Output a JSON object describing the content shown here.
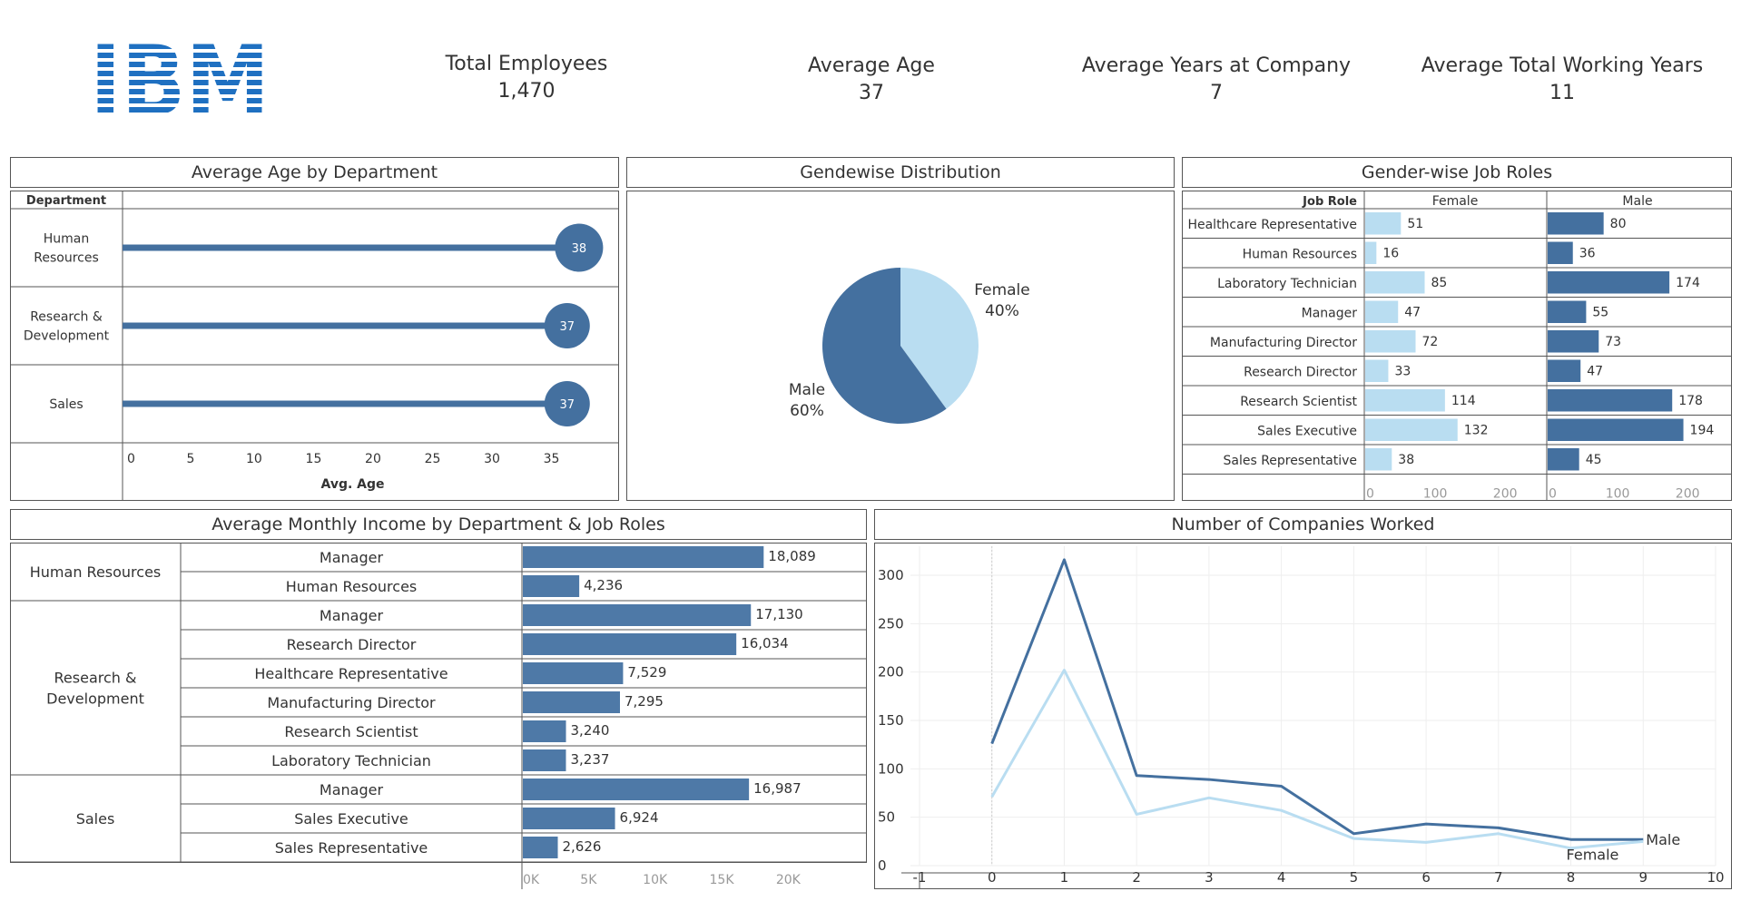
{
  "logo": {
    "text": "IBM",
    "color": "#1f70c1"
  },
  "kpis": [
    {
      "label": "Total Employees",
      "value": "1,470"
    },
    {
      "label": "Average Age",
      "value": "37"
    },
    {
      "label": "Average Years at Company",
      "value": "7"
    },
    {
      "label": "Average Total Working Years",
      "value": "11"
    }
  ],
  "colors": {
    "dark": "#44709f",
    "light": "#b9ddf1",
    "bar": "#4e79a7"
  },
  "chart_data": [
    {
      "type": "bar",
      "title": "Average Age by Department",
      "row_header": "Department",
      "categories": [
        "Human Resources",
        "Research & Development",
        "Sales"
      ],
      "category_lines": [
        [
          "Human",
          "Resources"
        ],
        [
          "Research &",
          "Development"
        ],
        [
          "Sales"
        ]
      ],
      "values": [
        38,
        37,
        37
      ],
      "labels": [
        "38",
        "37",
        "37"
      ],
      "xlabel": "Avg. Age",
      "xlim": [
        0,
        39
      ],
      "xticks": [
        "0",
        "5",
        "10",
        "15",
        "20",
        "25",
        "30",
        "35"
      ]
    },
    {
      "type": "pie",
      "title": "Gendewise Distribution",
      "slices": [
        {
          "name": "Female",
          "value": 40,
          "label": "40%"
        },
        {
          "name": "Male",
          "value": 60,
          "label": "60%"
        }
      ]
    },
    {
      "type": "bar",
      "title": "Gender-wise Job Roles",
      "row_header": "Job Role",
      "categories": [
        "Healthcare Representative",
        "Human Resources",
        "Laboratory Technician",
        "Manager",
        "Manufacturing Director",
        "Research Director",
        "Research Scientist",
        "Sales Executive",
        "Sales Representative"
      ],
      "series": [
        {
          "name": "Female",
          "values": [
            51,
            16,
            85,
            47,
            72,
            33,
            114,
            132,
            38
          ]
        },
        {
          "name": "Male",
          "values": [
            80,
            36,
            174,
            55,
            73,
            47,
            178,
            194,
            45
          ]
        }
      ],
      "xlim": [
        0,
        240
      ],
      "xticks": [
        "0",
        "100",
        "200"
      ]
    },
    {
      "type": "bar",
      "title": "Average Monthly Income by Department & Job Roles",
      "groups": [
        {
          "name": "Human Resources",
          "lines": [
            "Human Resources"
          ],
          "roles": [
            "Manager",
            "Human Resources"
          ],
          "values": [
            18089,
            4236
          ],
          "labels": [
            "18,089",
            "4,236"
          ]
        },
        {
          "name": "Research & Development",
          "lines": [
            "Research &",
            "Development"
          ],
          "roles": [
            "Manager",
            "Research Director",
            "Healthcare Representative",
            "Manufacturing Director",
            "Research Scientist",
            "Laboratory Technician"
          ],
          "values": [
            17130,
            16034,
            7529,
            7295,
            3240,
            3237
          ],
          "labels": [
            "17,130",
            "16,034",
            "7,529",
            "7,295",
            "3,240",
            "3,237"
          ]
        },
        {
          "name": "Sales",
          "lines": [
            "Sales"
          ],
          "roles": [
            "Manager",
            "Sales Executive",
            "Sales Representative"
          ],
          "values": [
            16987,
            6924,
            2626
          ],
          "labels": [
            "16,987",
            "6,924",
            "2,626"
          ]
        }
      ],
      "xlim": [
        0,
        22500
      ],
      "xticks": [
        "0K",
        "5K",
        "10K",
        "15K",
        "20K"
      ]
    },
    {
      "type": "line",
      "title": "Number of Companies Worked",
      "x": [
        0,
        1,
        2,
        3,
        4,
        5,
        6,
        7,
        8,
        9
      ],
      "series": [
        {
          "name": "Male",
          "values": [
            126,
            316,
            93,
            89,
            82,
            33,
            43,
            39,
            27,
            27
          ]
        },
        {
          "name": "Female",
          "values": [
            71,
            202,
            53,
            70,
            57,
            28,
            24,
            33,
            18,
            25
          ]
        }
      ],
      "xlim": [
        -1,
        10
      ],
      "ylim": [
        0,
        330
      ],
      "xticks": [
        "-1",
        "0",
        "1",
        "2",
        "3",
        "4",
        "5",
        "6",
        "7",
        "8",
        "9",
        "10"
      ],
      "yticks": [
        "0",
        "50",
        "100",
        "150",
        "200",
        "250",
        "300"
      ]
    }
  ]
}
